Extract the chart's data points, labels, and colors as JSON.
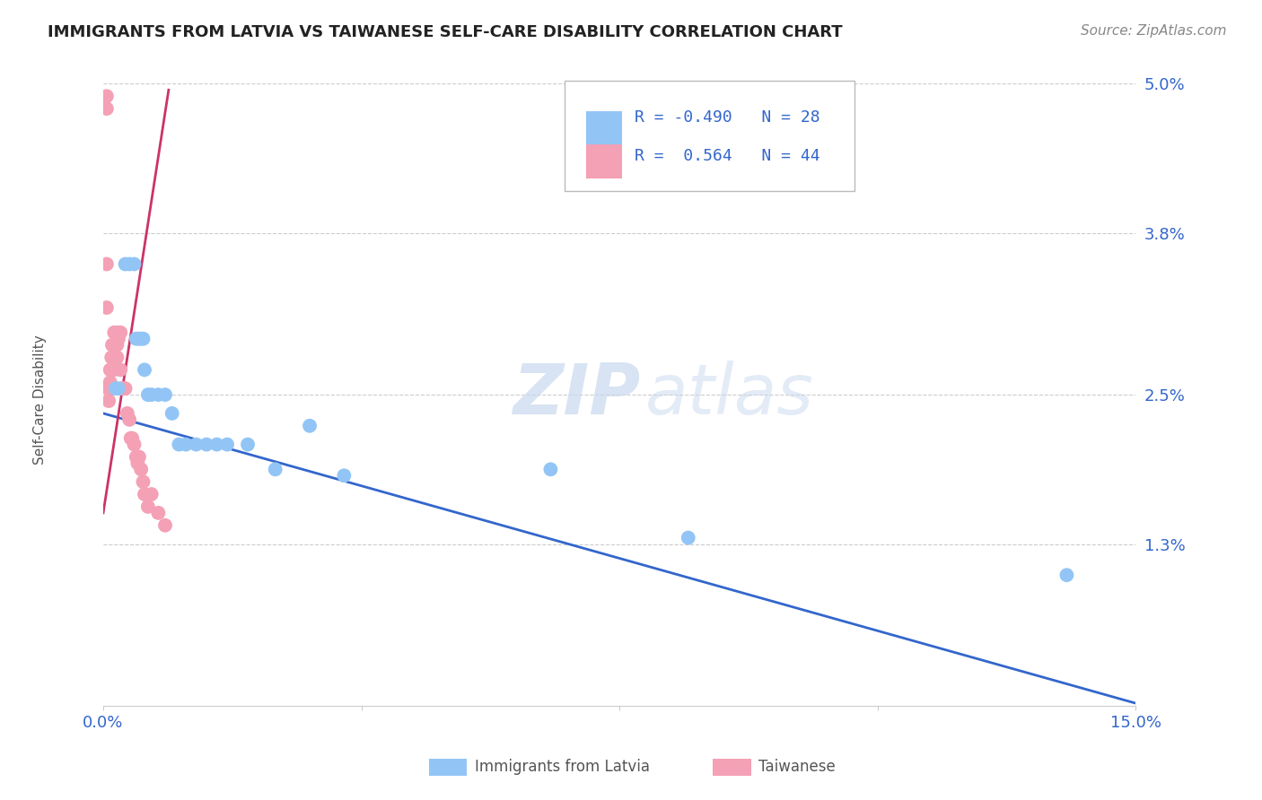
{
  "title": "IMMIGRANTS FROM LATVIA VS TAIWANESE SELF-CARE DISABILITY CORRELATION CHART",
  "source": "Source: ZipAtlas.com",
  "ylabel": "Self-Care Disability",
  "xlim": [
    0.0,
    15.0
  ],
  "ylim": [
    0.0,
    5.0
  ],
  "xtick_positions": [
    0.0,
    3.75,
    7.5,
    11.25,
    15.0
  ],
  "xtick_labels": [
    "0.0%",
    "",
    "",
    "",
    "15.0%"
  ],
  "ytick_positions": [
    1.3,
    2.5,
    3.8,
    5.0
  ],
  "ytick_labels": [
    "1.3%",
    "2.5%",
    "3.8%",
    "5.0%"
  ],
  "legend1_label": "Immigrants from Latvia",
  "legend2_label": "Taiwanese",
  "R_blue": -0.49,
  "N_blue": 28,
  "R_pink": 0.564,
  "N_pink": 44,
  "blue_color": "#92C5F5",
  "pink_color": "#F4A0B5",
  "blue_line_color": "#3366CC",
  "pink_line_color": "#CC3366",
  "watermark_zip": "ZIP",
  "watermark_atlas": "atlas",
  "blue_x": [
    0.18,
    0.22,
    0.32,
    0.38,
    0.45,
    0.48,
    0.52,
    0.55,
    0.58,
    0.6,
    0.65,
    0.7,
    0.8,
    0.9,
    1.0,
    1.1,
    1.2,
    1.35,
    1.5,
    1.65,
    1.8,
    2.1,
    2.5,
    3.0,
    3.5,
    6.5,
    8.5,
    14.0
  ],
  "blue_y": [
    2.55,
    2.55,
    3.55,
    3.55,
    3.55,
    2.95,
    2.95,
    2.95,
    2.95,
    2.7,
    2.5,
    2.5,
    2.5,
    2.5,
    2.35,
    2.1,
    2.1,
    2.1,
    2.1,
    2.1,
    2.1,
    2.1,
    1.9,
    2.25,
    1.85,
    1.9,
    1.35,
    1.05
  ],
  "pink_x": [
    0.05,
    0.05,
    0.05,
    0.05,
    0.07,
    0.08,
    0.1,
    0.1,
    0.1,
    0.12,
    0.12,
    0.13,
    0.14,
    0.15,
    0.15,
    0.16,
    0.16,
    0.18,
    0.18,
    0.2,
    0.2,
    0.22,
    0.22,
    0.25,
    0.25,
    0.28,
    0.28,
    0.3,
    0.32,
    0.35,
    0.38,
    0.4,
    0.42,
    0.45,
    0.48,
    0.5,
    0.52,
    0.55,
    0.58,
    0.6,
    0.65,
    0.7,
    0.8,
    0.9
  ],
  "pink_y": [
    4.8,
    4.9,
    3.55,
    3.2,
    2.55,
    2.45,
    2.55,
    2.6,
    2.7,
    2.7,
    2.8,
    2.9,
    2.55,
    2.7,
    2.8,
    2.9,
    3.0,
    2.8,
    2.9,
    2.8,
    2.9,
    2.95,
    3.0,
    2.7,
    3.0,
    2.55,
    2.55,
    2.55,
    2.55,
    2.35,
    2.3,
    2.15,
    2.15,
    2.1,
    2.0,
    1.95,
    2.0,
    1.9,
    1.8,
    1.7,
    1.6,
    1.7,
    1.55,
    1.45
  ],
  "blue_line_x": [
    0.0,
    15.0
  ],
  "blue_line_y": [
    2.35,
    0.02
  ],
  "pink_line_x": [
    0.0,
    0.95
  ],
  "pink_line_y": [
    1.55,
    4.95
  ]
}
